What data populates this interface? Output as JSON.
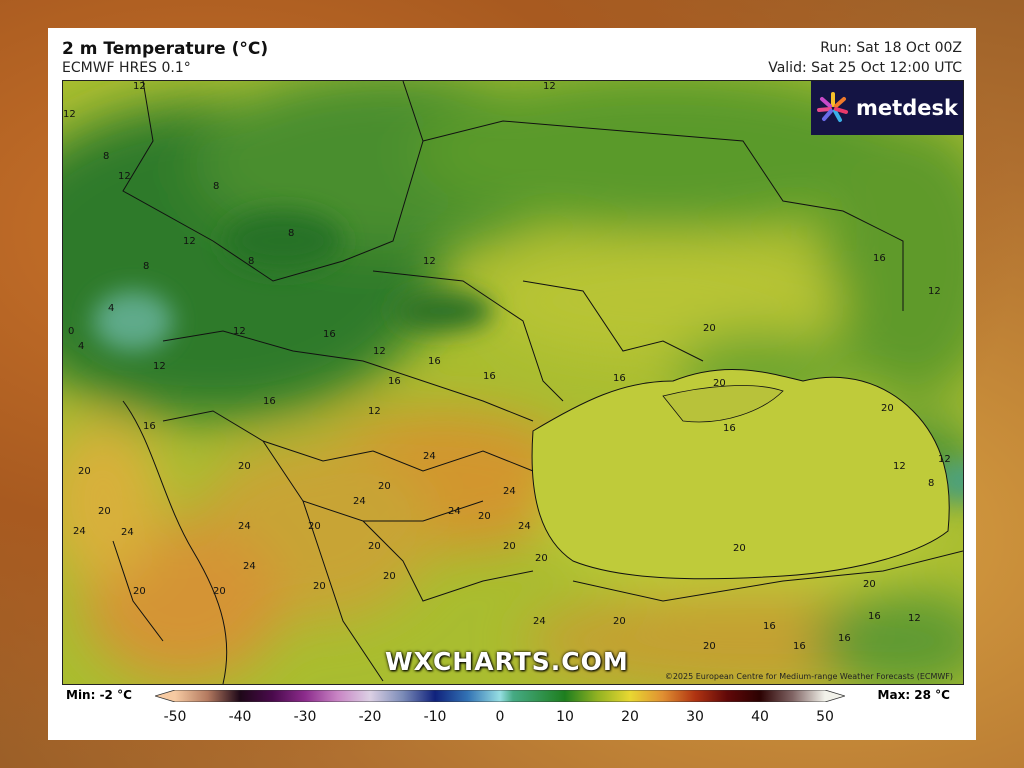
{
  "header": {
    "title": "2 m Temperature (°C)",
    "model": "ECMWF HRES 0.1°",
    "run": "Run: Sat 18 Oct 00Z",
    "valid": "Valid: Sat 25 Oct 12:00 UTC"
  },
  "logo": {
    "text": "metdesk"
  },
  "watermark": "WXCHARTS.COM",
  "copyright": "©2025 European Centre for Medium-range Weather Forecasts (ECMWF)",
  "legend": {
    "min": "Min: -2 °C",
    "max": "Max: 28 °C",
    "ticks": [
      "-50",
      "-40",
      "-30",
      "-20",
      "-10",
      "0",
      "10",
      "20",
      "30",
      "40",
      "50"
    ],
    "scale": [
      [
        -50,
        "#f6caa2"
      ],
      [
        -45,
        "#b47a60"
      ],
      [
        -40,
        "#1e0818"
      ],
      [
        -35,
        "#4a0a4c"
      ],
      [
        -30,
        "#8c2c8c"
      ],
      [
        -25,
        "#c884c4"
      ],
      [
        -20,
        "#dcd0e4"
      ],
      [
        -15,
        "#7c8cb8"
      ],
      [
        -10,
        "#10227c"
      ],
      [
        -5,
        "#3272b4"
      ],
      [
        0,
        "#96dee2"
      ],
      [
        2,
        "#46aa84"
      ],
      [
        10,
        "#1e7e1e"
      ],
      [
        15,
        "#92b222"
      ],
      [
        20,
        "#e8d832"
      ],
      [
        25,
        "#e09032"
      ],
      [
        30,
        "#b03412"
      ],
      [
        35,
        "#600808"
      ],
      [
        40,
        "#2c0202"
      ],
      [
        45,
        "#806464"
      ],
      [
        50,
        "#f2f2ea"
      ]
    ]
  },
  "contour_labels": [
    "12",
    "12",
    "12",
    "8",
    "12",
    "8",
    "8",
    "12",
    "8",
    "8",
    "4",
    "0",
    "4",
    "12",
    "12",
    "12",
    "16",
    "12",
    "16",
    "16",
    "16",
    "16",
    "12",
    "16",
    "20",
    "20",
    "16",
    "20",
    "16",
    "16",
    "12",
    "8",
    "12",
    "24",
    "24",
    "20",
    "20",
    "24",
    "24",
    "24",
    "20",
    "24",
    "20",
    "20",
    "24",
    "24",
    "20",
    "20",
    "20",
    "20",
    "24",
    "20",
    "20",
    "20",
    "20",
    "20",
    "24",
    "16",
    "16",
    "12",
    "12",
    "12",
    "20",
    "20",
    "16",
    "16",
    "20"
  ]
}
